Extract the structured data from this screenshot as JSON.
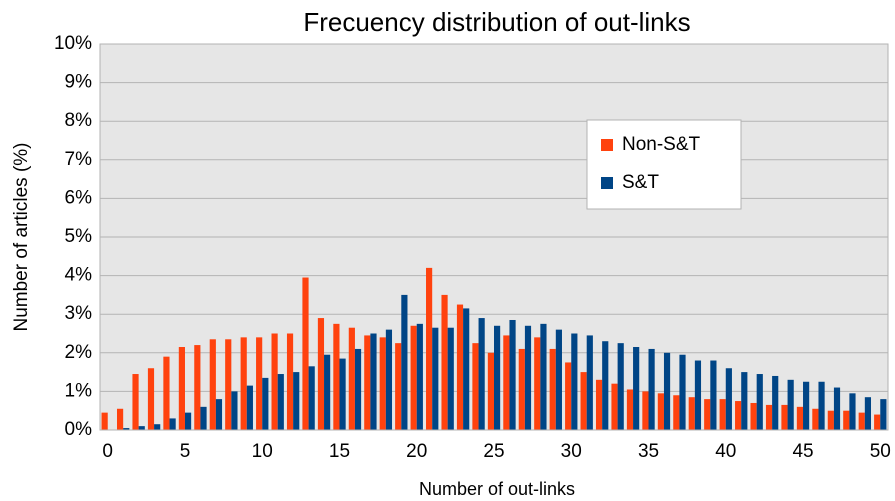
{
  "chart_data": {
    "type": "bar",
    "title": "Frecuency distribution of out-links",
    "x_label": "Number of out-links",
    "y_label": "Number of articles (%)",
    "categories": [
      0,
      null,
      null,
      null,
      null,
      5,
      null,
      null,
      null,
      null,
      10,
      null,
      null,
      null,
      null,
      15,
      null,
      null,
      null,
      null,
      20,
      null,
      null,
      null,
      null,
      25,
      null,
      null,
      null,
      null,
      30,
      null,
      null,
      null,
      null,
      35,
      null,
      null,
      null,
      null,
      40,
      null,
      null,
      null,
      null,
      45,
      null,
      null,
      null,
      null,
      50
    ],
    "series": [
      {
        "name": "Non-S&T",
        "color": "#ff420e",
        "values": [
          0.45,
          0.55,
          1.45,
          1.6,
          1.9,
          2.15,
          2.2,
          2.35,
          2.35,
          2.4,
          2.4,
          2.5,
          2.5,
          3.95,
          2.9,
          2.75,
          2.65,
          2.45,
          2.4,
          2.25,
          2.7,
          4.2,
          3.5,
          3.25,
          2.25,
          2.0,
          2.45,
          2.1,
          2.4,
          2.1,
          1.75,
          1.5,
          1.3,
          1.2,
          1.05,
          1.0,
          0.95,
          0.9,
          0.85,
          0.8,
          0.8,
          0.75,
          0.7,
          0.65,
          0.65,
          0.6,
          0.55,
          0.5,
          0.5,
          0.45,
          0.4
        ]
      },
      {
        "name": "S&T",
        "color": "#004586",
        "values": [
          0,
          0.05,
          0.1,
          0.15,
          0.3,
          0.45,
          0.6,
          0.8,
          1.0,
          1.15,
          1.35,
          1.45,
          1.5,
          1.65,
          1.95,
          1.85,
          2.1,
          2.5,
          2.6,
          3.5,
          2.75,
          2.65,
          2.65,
          3.15,
          2.9,
          2.7,
          2.85,
          2.7,
          2.75,
          2.6,
          2.5,
          2.45,
          2.3,
          2.25,
          2.15,
          2.1,
          2.0,
          1.95,
          1.8,
          1.8,
          1.6,
          1.5,
          1.45,
          1.4,
          1.3,
          1.25,
          1.25,
          1.1,
          0.95,
          0.85,
          0.8
        ]
      }
    ],
    "ylim": [
      0,
      10
    ],
    "yticks": [
      {
        "value": 0,
        "label": "0%"
      },
      {
        "value": 1,
        "label": "1%"
      },
      {
        "value": 2,
        "label": "2%"
      },
      {
        "value": 3,
        "label": "3%"
      },
      {
        "value": 4,
        "label": "4%"
      },
      {
        "value": 5,
        "label": "5%"
      },
      {
        "value": 6,
        "label": "6%"
      },
      {
        "value": 7,
        "label": "7%"
      },
      {
        "value": 8,
        "label": "8%"
      },
      {
        "value": 9,
        "label": "9%"
      },
      {
        "value": 10,
        "label": "10%"
      }
    ],
    "grid": true
  }
}
